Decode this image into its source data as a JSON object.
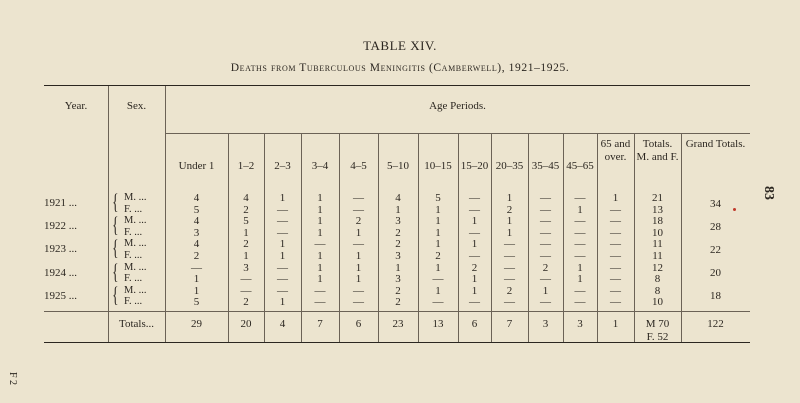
{
  "title": "TABLE XIV.",
  "subtitle": "Deaths from Tuberculous Meningitis (Camberwell), 1921–1925.",
  "page_number": "83",
  "side_mark": "F 2",
  "headers": {
    "year": "Year.",
    "sex": "Sex.",
    "age_periods": "Age Periods.",
    "columns": [
      "Under 1",
      "1–2",
      "2–3",
      "3–4",
      "4–5",
      "5–10",
      "10–15",
      "15–20",
      "20–35",
      "35–45",
      "45–65",
      "65 and over.",
      "Totals. M. and F.",
      "Grand Totals."
    ]
  },
  "rows": [
    {
      "year": "1921 ...",
      "sex": "M. ...",
      "values": [
        "4",
        "4",
        "1",
        "1",
        "—",
        "4",
        "5",
        "—",
        "1",
        "—",
        "—",
        "1",
        "21"
      ],
      "grand": ""
    },
    {
      "year": "",
      "sex": "F. ...",
      "values": [
        "5",
        "2",
        "—",
        "1",
        "—",
        "1",
        "1",
        "—",
        "2",
        "—",
        "1",
        "—",
        "13"
      ],
      "grand": "34"
    },
    {
      "year": "1922 ...",
      "sex": "M. ...",
      "values": [
        "4",
        "5",
        "—",
        "1",
        "2",
        "3",
        "1",
        "1",
        "1",
        "—",
        "—",
        "—",
        "18"
      ],
      "grand": ""
    },
    {
      "year": "",
      "sex": "F. ...",
      "values": [
        "3",
        "1",
        "—",
        "1",
        "1",
        "2",
        "1",
        "—",
        "1",
        "—",
        "—",
        "—",
        "10"
      ],
      "grand": "28"
    },
    {
      "year": "1923 ...",
      "sex": "M. ...",
      "values": [
        "4",
        "2",
        "1",
        "—",
        "—",
        "2",
        "1",
        "1",
        "—",
        "—",
        "—",
        "—",
        "11"
      ],
      "grand": ""
    },
    {
      "year": "",
      "sex": "F. ...",
      "values": [
        "2",
        "1",
        "1",
        "1",
        "1",
        "3",
        "2",
        "—",
        "—",
        "—",
        "—",
        "—",
        "11"
      ],
      "grand": "22"
    },
    {
      "year": "1924 ...",
      "sex": "M. ...",
      "values": [
        "—",
        "3",
        "—",
        "1",
        "1",
        "1",
        "1",
        "2",
        "—",
        "2",
        "1",
        "—",
        "12"
      ],
      "grand": ""
    },
    {
      "year": "",
      "sex": "F. ...",
      "values": [
        "1",
        "—",
        "—",
        "1",
        "1",
        "3",
        "—",
        "1",
        "—",
        "—",
        "1",
        "—",
        "8"
      ],
      "grand": "20"
    },
    {
      "year": "1925 ...",
      "sex": "M. ...",
      "values": [
        "1",
        "—",
        "—",
        "—",
        "—",
        "2",
        "1",
        "1",
        "2",
        "1",
        "—",
        "—",
        "8"
      ],
      "grand": ""
    },
    {
      "year": "",
      "sex": "F. ...",
      "values": [
        "5",
        "2",
        "1",
        "—",
        "—",
        "2",
        "—",
        "—",
        "—",
        "—",
        "—",
        "—",
        "10"
      ],
      "grand": "18"
    }
  ],
  "totals": {
    "label": "Totals...",
    "values": [
      "29",
      "20",
      "4",
      "7",
      "6",
      "23",
      "13",
      "6",
      "7",
      "3",
      "3",
      "1"
    ],
    "mf_m": "M 70",
    "mf_f": "F. 52",
    "grand": "122"
  }
}
